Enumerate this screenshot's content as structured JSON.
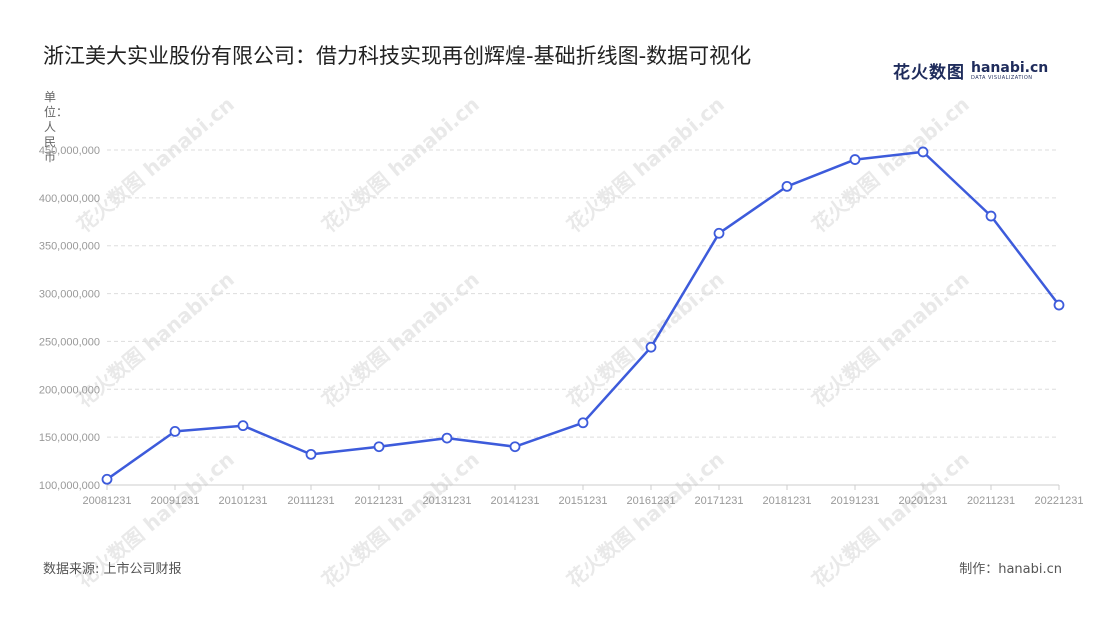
{
  "header": {
    "title": "浙江美大实业股份有限公司：借力科技实现再创辉煌-基础折线图-数据可视化",
    "brand_cn": "花火数图",
    "brand_en": "hanabi.cn",
    "brand_tagline": "DATA VISUALIZATION"
  },
  "chart_data": {
    "type": "line",
    "title": "浙江美大实业股份有限公司：借力科技实现再创辉煌-基础折线图-数据可视化",
    "ylabel": "单位：人民币",
    "xlabel": "",
    "categories": [
      "20081231",
      "20091231",
      "20101231",
      "20111231",
      "20121231",
      "20131231",
      "20141231",
      "20151231",
      "20161231",
      "20171231",
      "20181231",
      "20191231",
      "20201231",
      "20211231",
      "20221231"
    ],
    "series": [
      {
        "values": [
          106000000,
          156000000,
          162000000,
          132000000,
          140000000,
          149000000,
          140000000,
          165000000,
          244000000,
          363000000,
          412000000,
          440000000,
          448000000,
          381000000,
          288000000
        ]
      }
    ],
    "ylim": [
      100000000,
      450000000
    ],
    "yticks": [
      100000000,
      150000000,
      200000000,
      250000000,
      300000000,
      350000000,
      400000000,
      450000000
    ],
    "ytick_labels": [
      "100,000,000",
      "150,000,000",
      "200,000,000",
      "250,000,000",
      "300,000,000",
      "350,000,000",
      "400,000,000",
      "450,000,000"
    ],
    "grid": true,
    "line_color": "#3d5bdb",
    "marker": "hollow-circle"
  },
  "footer": {
    "source": "数据来源: 上市公司财报",
    "maker": "制作：hanabi.cn"
  }
}
